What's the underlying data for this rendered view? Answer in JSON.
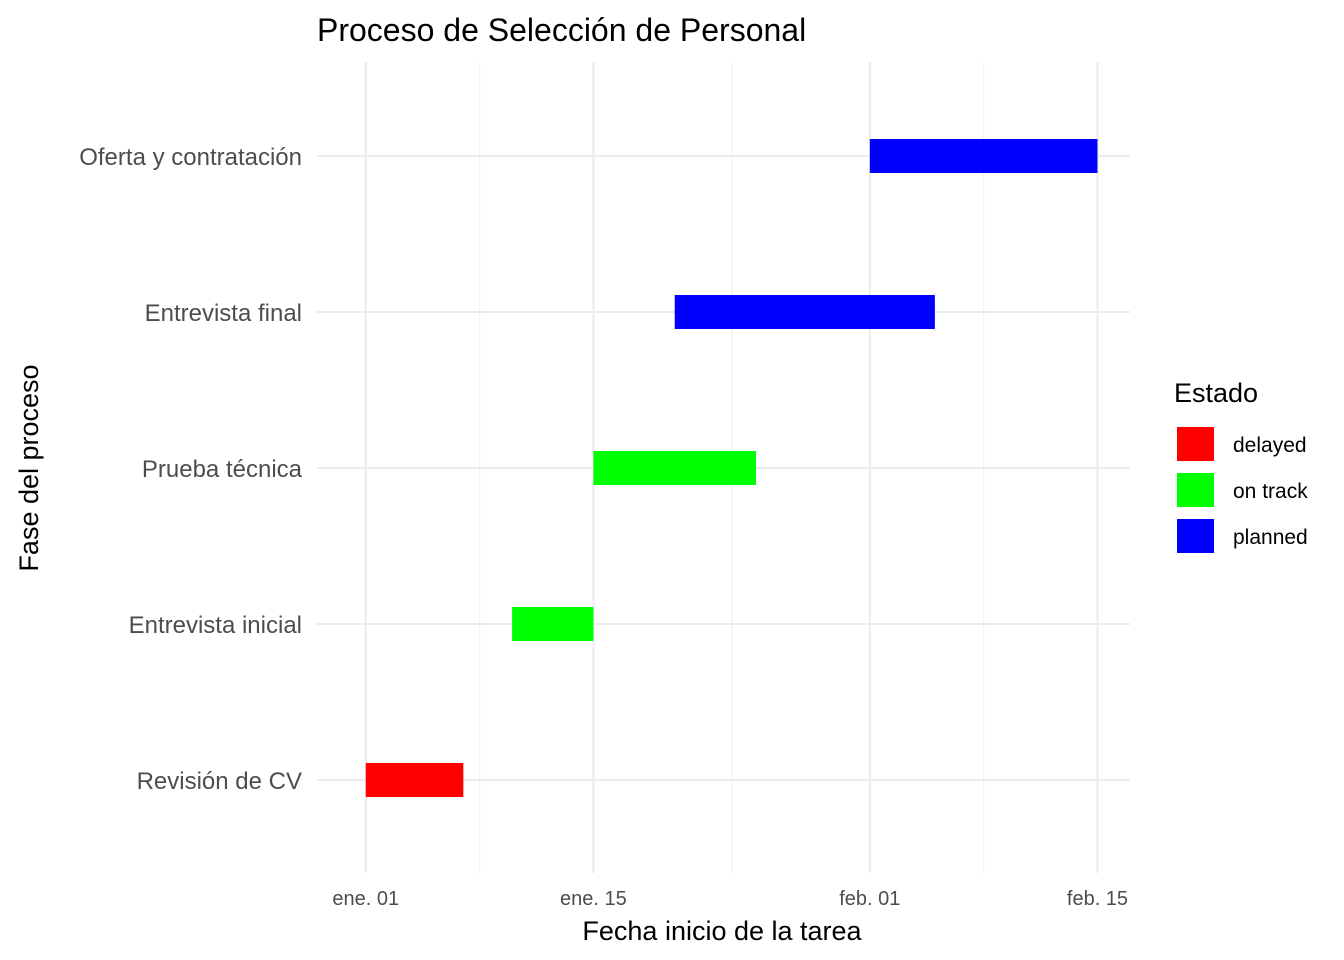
{
  "chart_data": {
    "type": "bar",
    "orientation": "horizontal-gantt",
    "title": "Proceso de Selección de Personal",
    "xlabel": "Fecha inicio de la tarea",
    "ylabel": "Fase del proceso",
    "xlim": [
      "2023-12-29",
      "2024-02-17"
    ],
    "x_ticks": [
      {
        "date": "2024-01-01",
        "label": "ene. 01"
      },
      {
        "date": "2024-01-15",
        "label": "ene. 15"
      },
      {
        "date": "2024-02-01",
        "label": "feb. 01"
      },
      {
        "date": "2024-02-15",
        "label": "feb. 15"
      }
    ],
    "categories": [
      "Revisión de CV",
      "Entrevista inicial",
      "Prueba técnica",
      "Entrevista final",
      "Oferta y contratación"
    ],
    "tasks": [
      {
        "phase": "Revisión de CV",
        "start": "2024-01-01",
        "end": "2024-01-07",
        "status": "delayed"
      },
      {
        "phase": "Entrevista inicial",
        "start": "2024-01-10",
        "end": "2024-01-15",
        "status": "on track"
      },
      {
        "phase": "Prueba técnica",
        "start": "2024-01-15",
        "end": "2024-01-25",
        "status": "on track"
      },
      {
        "phase": "Entrevista final",
        "start": "2024-01-20",
        "end": "2024-02-05",
        "status": "planned"
      },
      {
        "phase": "Oferta y contratación",
        "start": "2024-02-01",
        "end": "2024-02-15",
        "status": "planned"
      }
    ],
    "legend": {
      "title": "Estado",
      "position": "right",
      "entries": [
        {
          "label": "delayed",
          "color": "#FF0000"
        },
        {
          "label": "on track",
          "color": "#00FF00"
        },
        {
          "label": "planned",
          "color": "#0000FF"
        }
      ]
    },
    "grid": true
  }
}
